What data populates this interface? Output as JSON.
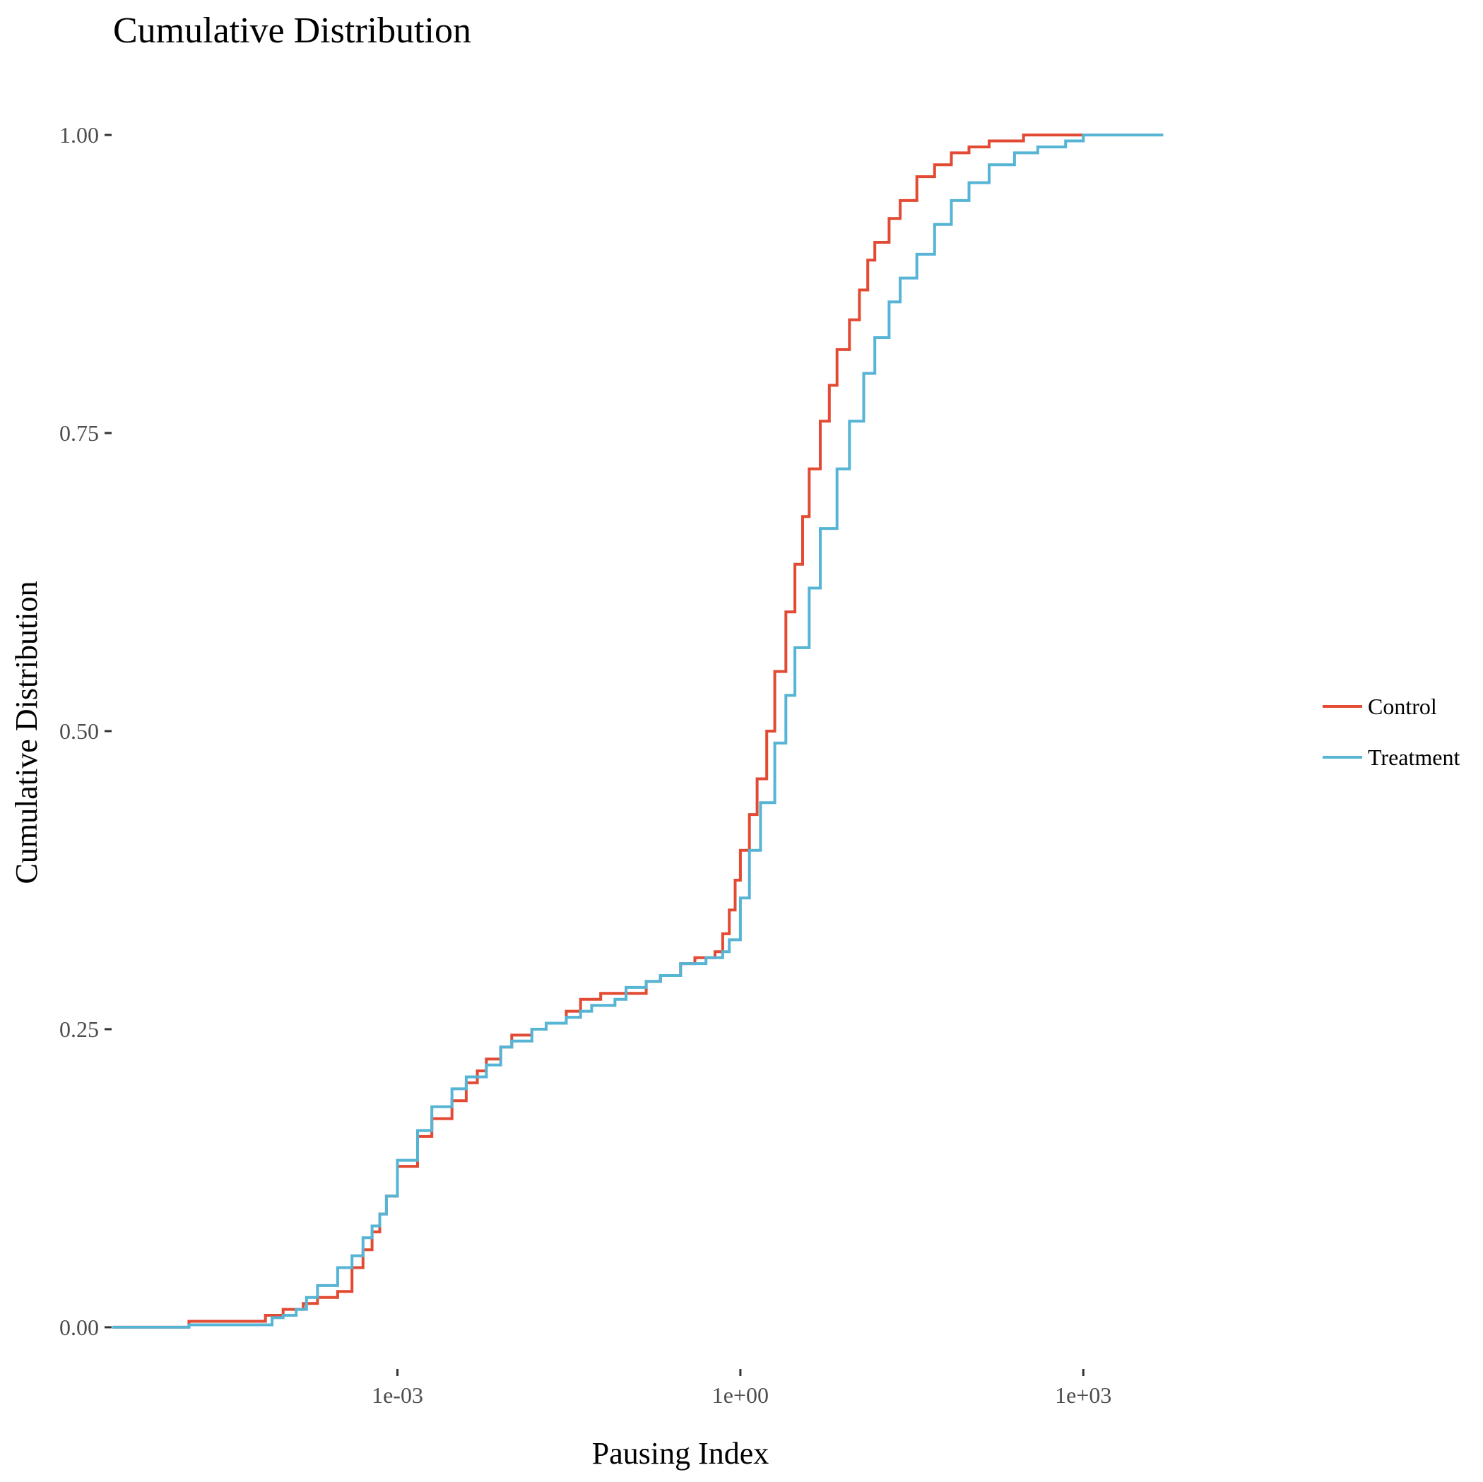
{
  "chart_data": {
    "type": "line",
    "title": "Cumulative Distribution",
    "xlabel": "Pausing Index",
    "ylabel": "Cumulative Distribution",
    "x_scale": "log10",
    "xlim": [
      3.16e-06,
      31622
    ],
    "ylim": [
      -0.035,
      1.035
    ],
    "grid": false,
    "legend_position": "right",
    "x_ticks": [
      {
        "value": 0.001,
        "label": "1e-03"
      },
      {
        "value": 1,
        "label": "1e+00"
      },
      {
        "value": 1000,
        "label": "1e+03"
      }
    ],
    "y_ticks": [
      {
        "value": 0.0,
        "label": "0.00"
      },
      {
        "value": 0.25,
        "label": "0.25"
      },
      {
        "value": 0.5,
        "label": "0.50"
      },
      {
        "value": 0.75,
        "label": "0.75"
      },
      {
        "value": 1.0,
        "label": "1.00"
      }
    ],
    "series": [
      {
        "name": "Control",
        "color": "#E24A33",
        "points": [
          [
            3.2e-06,
            0.0
          ],
          [
            1.5e-05,
            0.0
          ],
          [
            1.5e-05,
            0.005
          ],
          [
            5e-05,
            0.005
          ],
          [
            7e-05,
            0.01
          ],
          [
            0.0001,
            0.015
          ],
          [
            0.00015,
            0.02
          ],
          [
            0.0002,
            0.025
          ],
          [
            0.0003,
            0.03
          ],
          [
            0.0004,
            0.05
          ],
          [
            0.0005,
            0.065
          ],
          [
            0.0006,
            0.08
          ],
          [
            0.0007,
            0.095
          ],
          [
            0.0008,
            0.11
          ],
          [
            0.001,
            0.135
          ],
          [
            0.0015,
            0.16
          ],
          [
            0.002,
            0.175
          ],
          [
            0.003,
            0.19
          ],
          [
            0.004,
            0.205
          ],
          [
            0.005,
            0.215
          ],
          [
            0.006,
            0.225
          ],
          [
            0.008,
            0.235
          ],
          [
            0.01,
            0.245
          ],
          [
            0.015,
            0.25
          ],
          [
            0.02,
            0.255
          ],
          [
            0.03,
            0.265
          ],
          [
            0.04,
            0.275
          ],
          [
            0.06,
            0.28
          ],
          [
            0.1,
            0.28
          ],
          [
            0.15,
            0.29
          ],
          [
            0.2,
            0.295
          ],
          [
            0.3,
            0.305
          ],
          [
            0.4,
            0.31
          ],
          [
            0.6,
            0.315
          ],
          [
            0.7,
            0.33
          ],
          [
            0.8,
            0.35
          ],
          [
            0.9,
            0.375
          ],
          [
            1.0,
            0.4
          ],
          [
            1.2,
            0.43
          ],
          [
            1.4,
            0.46
          ],
          [
            1.7,
            0.5
          ],
          [
            2.0,
            0.55
          ],
          [
            2.5,
            0.6
          ],
          [
            3.0,
            0.64
          ],
          [
            3.5,
            0.68
          ],
          [
            4.0,
            0.72
          ],
          [
            5.0,
            0.76
          ],
          [
            6.0,
            0.79
          ],
          [
            7.0,
            0.82
          ],
          [
            9.0,
            0.845
          ],
          [
            11.0,
            0.87
          ],
          [
            13.0,
            0.895
          ],
          [
            15.0,
            0.91
          ],
          [
            20.0,
            0.93
          ],
          [
            25.0,
            0.945
          ],
          [
            35.0,
            0.965
          ],
          [
            50.0,
            0.975
          ],
          [
            70.0,
            0.985
          ],
          [
            100.0,
            0.99
          ],
          [
            150.0,
            0.995
          ],
          [
            300.0,
            1.0
          ],
          [
            1000.0,
            1.0
          ]
        ]
      },
      {
        "name": "Treatment",
        "color": "#56B4D4",
        "points": [
          [
            3.2e-06,
            0.0
          ],
          [
            1.5e-05,
            0.0
          ],
          [
            1.5e-05,
            0.002
          ],
          [
            8e-05,
            0.002
          ],
          [
            8e-05,
            0.008
          ],
          [
            0.0001,
            0.01
          ],
          [
            0.00013,
            0.015
          ],
          [
            0.00016,
            0.025
          ],
          [
            0.0002,
            0.035
          ],
          [
            0.0003,
            0.05
          ],
          [
            0.0004,
            0.06
          ],
          [
            0.0005,
            0.075
          ],
          [
            0.0006,
            0.085
          ],
          [
            0.0007,
            0.095
          ],
          [
            0.0008,
            0.11
          ],
          [
            0.001,
            0.14
          ],
          [
            0.0015,
            0.165
          ],
          [
            0.002,
            0.185
          ],
          [
            0.003,
            0.2
          ],
          [
            0.004,
            0.21
          ],
          [
            0.006,
            0.22
          ],
          [
            0.008,
            0.235
          ],
          [
            0.01,
            0.24
          ],
          [
            0.015,
            0.25
          ],
          [
            0.02,
            0.255
          ],
          [
            0.03,
            0.26
          ],
          [
            0.04,
            0.265
          ],
          [
            0.05,
            0.27
          ],
          [
            0.08,
            0.275
          ],
          [
            0.1,
            0.285
          ],
          [
            0.15,
            0.29
          ],
          [
            0.2,
            0.295
          ],
          [
            0.3,
            0.305
          ],
          [
            0.5,
            0.31
          ],
          [
            0.7,
            0.315
          ],
          [
            0.8,
            0.325
          ],
          [
            1.0,
            0.36
          ],
          [
            1.2,
            0.4
          ],
          [
            1.5,
            0.44
          ],
          [
            2.0,
            0.49
          ],
          [
            2.5,
            0.53
          ],
          [
            3.0,
            0.57
          ],
          [
            4.0,
            0.62
          ],
          [
            5.0,
            0.67
          ],
          [
            7.0,
            0.72
          ],
          [
            9.0,
            0.76
          ],
          [
            12.0,
            0.8
          ],
          [
            15.0,
            0.83
          ],
          [
            20.0,
            0.86
          ],
          [
            25.0,
            0.88
          ],
          [
            35.0,
            0.9
          ],
          [
            50.0,
            0.925
          ],
          [
            70.0,
            0.945
          ],
          [
            100.0,
            0.96
          ],
          [
            150.0,
            0.975
          ],
          [
            250.0,
            0.985
          ],
          [
            400.0,
            0.99
          ],
          [
            700.0,
            0.995
          ],
          [
            1000.0,
            1.0
          ],
          [
            5000.0,
            1.0
          ]
        ]
      }
    ]
  }
}
